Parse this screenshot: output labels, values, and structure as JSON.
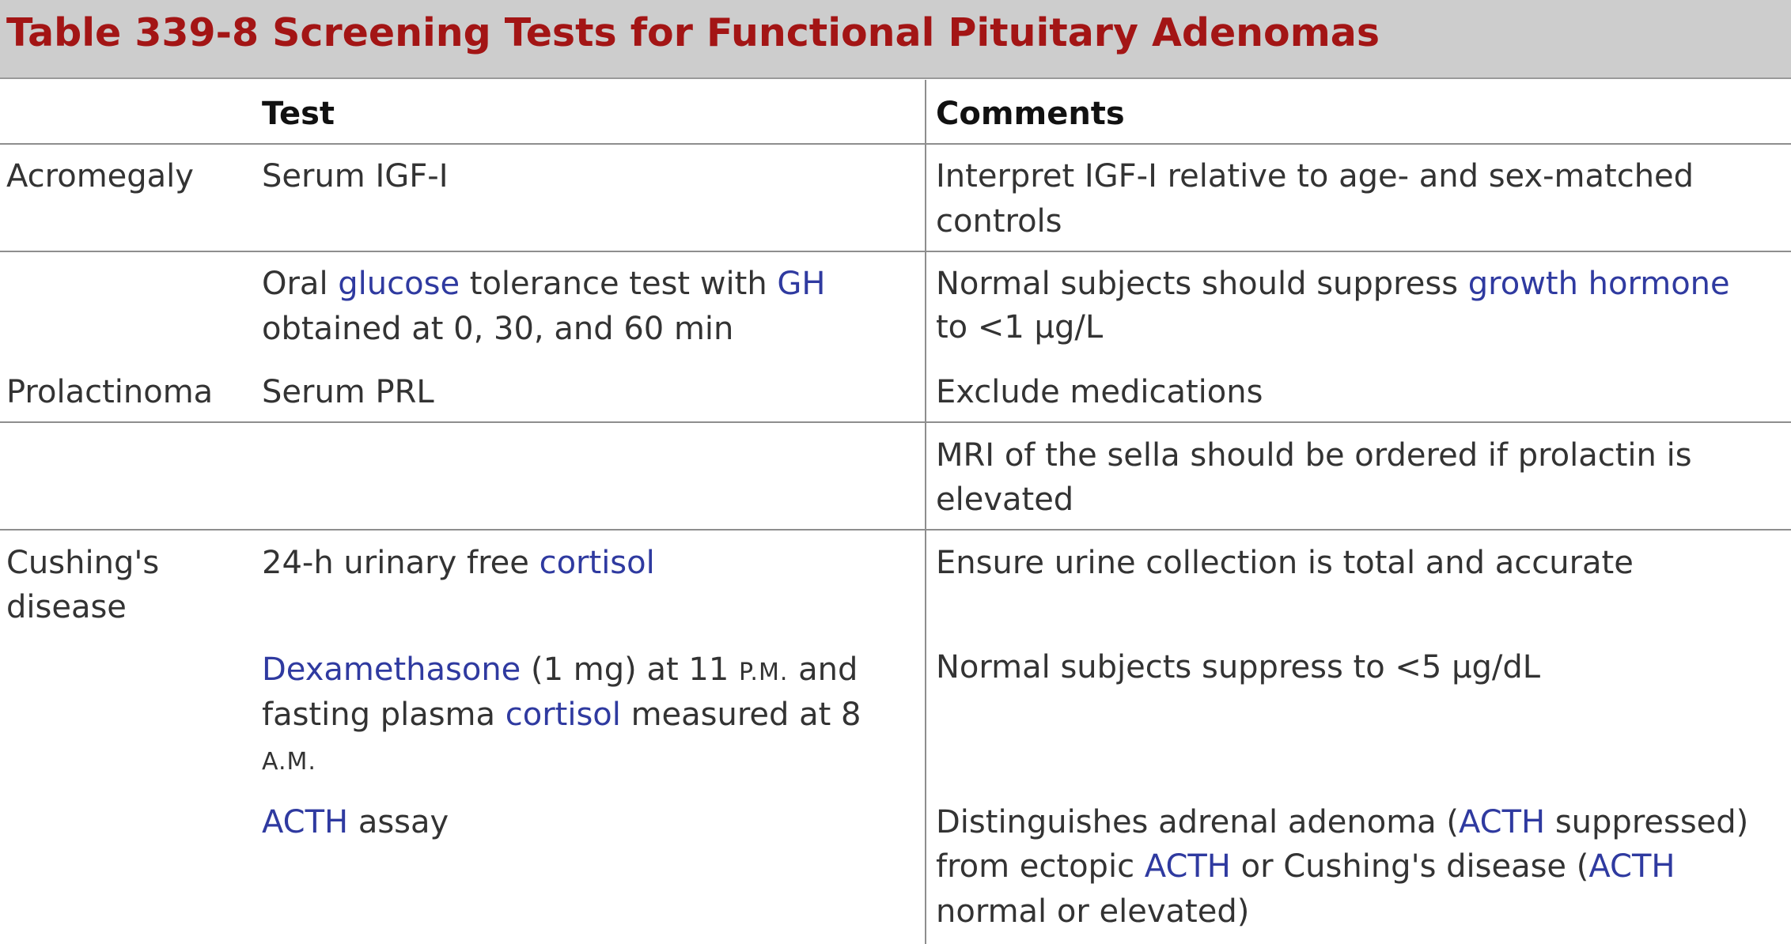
{
  "title": "Table 339-8 Screening Tests for Functional Pituitary Adenomas",
  "headers": {
    "condition": "",
    "test": "Test",
    "comments": "Comments"
  },
  "rows": [
    {
      "condition": "Acromegaly",
      "test": "Serum IGF-I",
      "comment_lines": [
        "Interpret IGF-I relative to age- and sex-matched",
        "controls"
      ]
    },
    {
      "condition": "",
      "test_segments": {
        "a": "Oral ",
        "b": "glucose",
        "c": " tolerance test with ",
        "d": "GH",
        "line2": "obtained at 0, 30, and 60 min"
      },
      "comment_segments": {
        "a": "Normal subjects should suppress ",
        "b": "growth hormone",
        "line2": "to <1 μg/L"
      }
    },
    {
      "condition": "Prolactinoma",
      "test": "Serum PRL",
      "comment": "Exclude medications"
    },
    {
      "condition": "",
      "test": "",
      "comment_lines": [
        "MRI of the sella should be ordered if prolactin is",
        "elevated"
      ]
    },
    {
      "condition_lines": [
        "Cushing's",
        "disease"
      ],
      "test_segments": {
        "a": "24-h urinary free ",
        "b": "cortisol"
      },
      "comment": "Ensure urine collection is total and accurate"
    },
    {
      "condition": "",
      "test_segments": {
        "a": "Dexamethasone",
        "b": " (1 mg) at 11 ",
        "c": "P.M.",
        "d": " and",
        "line2_a": "fasting plasma ",
        "line2_b": "cortisol",
        "line2_c": " measured at 8",
        "line3": "A.M."
      },
      "comment": "Normal subjects suppress to <5 μg/dL"
    },
    {
      "condition": "",
      "test_segments": {
        "a": "ACTH",
        "b": " assay"
      },
      "comment_segments": {
        "line1_a": "Distinguishes adrenal adenoma (",
        "line1_b": "ACTH",
        "line1_c": " suppressed)",
        "line2_a": "from ectopic ",
        "line2_b": "ACTH",
        "line2_c": " or Cushing's disease (",
        "line2_d": "ACTH",
        "line3": "normal or elevated)"
      }
    }
  ],
  "colors": {
    "title": "#a31515",
    "title_bar": "#cdcdcd",
    "link": "#2f3aa0",
    "text": "#333333",
    "rule": "#8e8e8e"
  }
}
